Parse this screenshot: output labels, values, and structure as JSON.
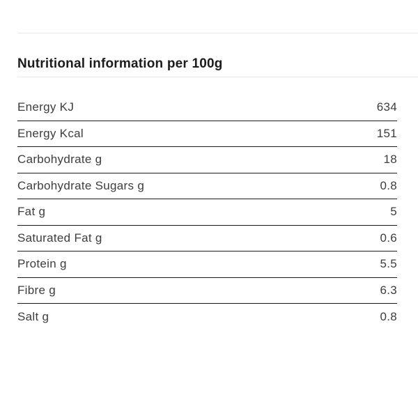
{
  "header": {
    "title": "Nutritional information per 100g"
  },
  "table": {
    "rows": [
      {
        "label": "Energy KJ",
        "value": "634"
      },
      {
        "label": "Energy Kcal",
        "value": "151"
      },
      {
        "label": "Carbohydrate g",
        "value": "18"
      },
      {
        "label": "Carbohydrate Sugars g",
        "value": "0.8"
      },
      {
        "label": "Fat g",
        "value": "5"
      },
      {
        "label": "Saturated Fat g",
        "value": "0.6"
      },
      {
        "label": "Protein g",
        "value": "5.5"
      },
      {
        "label": "Fibre g",
        "value": "6.3"
      },
      {
        "label": "Salt g",
        "value": "0.8"
      }
    ]
  },
  "colors": {
    "background": "#ffffff",
    "rule_light": "#e8e8e8",
    "row_border": "#1b1b1b",
    "title_text": "#1c1c1c",
    "body_text": "#3d3d3d"
  }
}
